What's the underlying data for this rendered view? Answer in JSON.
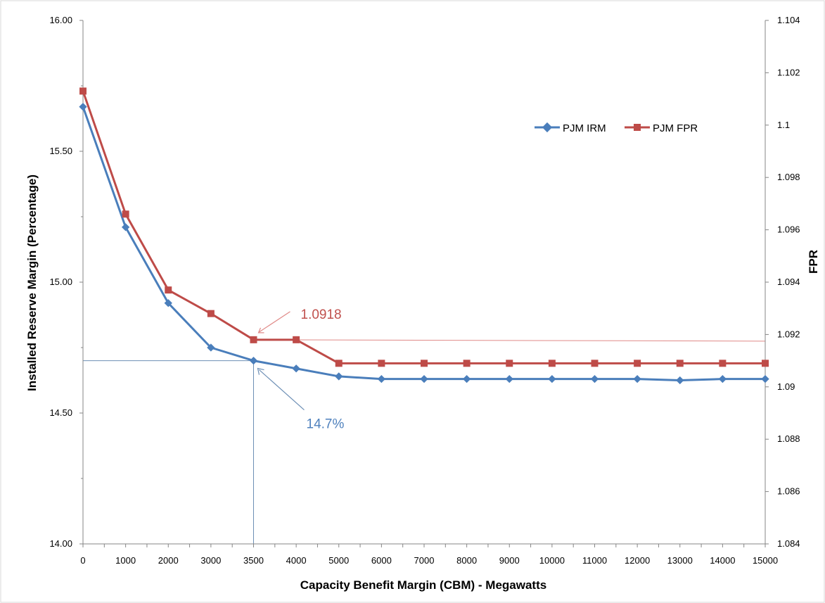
{
  "chart_data": {
    "type": "line",
    "title": "",
    "xlabel": "Capacity Benefit Margin (CBM) - Megawatts",
    "ylabel_left": "Installed Reserve Margin (Percentage)",
    "ylabel_right": "FPR",
    "categories": [
      "0",
      "1000",
      "2000",
      "3000",
      "3500",
      "4000",
      "5000",
      "6000",
      "7000",
      "8000",
      "9000",
      "10000",
      "11000",
      "12000",
      "13000",
      "14000",
      "15000"
    ],
    "y_left": {
      "min": 14.0,
      "max": 16.0,
      "ticks": [
        14.0,
        14.5,
        15.0,
        15.5,
        16.0
      ],
      "tick_labels": [
        "14.00",
        "14.50",
        "15.00",
        "15.50",
        "16.00"
      ]
    },
    "y_right": {
      "min": 1.084,
      "max": 1.104,
      "ticks": [
        1.084,
        1.086,
        1.088,
        1.09,
        1.092,
        1.094,
        1.096,
        1.098,
        1.1,
        1.102,
        1.104
      ],
      "tick_labels": [
        "1.084",
        "1.086",
        "1.088",
        "1.09",
        "1.092",
        "1.094",
        "1.096",
        "1.098",
        "1.1",
        "1.102",
        "1.104"
      ]
    },
    "series": [
      {
        "name": "PJM IRM",
        "axis": "left",
        "color": "#4a7ebb",
        "marker": "diamond",
        "values": [
          15.67,
          15.21,
          14.92,
          14.75,
          14.7,
          14.67,
          14.64,
          14.63,
          14.63,
          14.63,
          14.63,
          14.63,
          14.63,
          14.63,
          14.625,
          14.63,
          14.63
        ]
      },
      {
        "name": "PJM FPR",
        "axis": "right",
        "color": "#be4b48",
        "marker": "square",
        "values": [
          1.1013,
          1.0966,
          1.0937,
          1.0928,
          1.0918,
          1.0918,
          1.0909,
          1.0909,
          1.0909,
          1.0909,
          1.0909,
          1.0909,
          1.0909,
          1.0909,
          1.0909,
          1.0909,
          1.0909
        ]
      }
    ],
    "annotations": [
      {
        "text": "1.0918",
        "color": "#c0504d",
        "category": "3500",
        "series": "PJM FPR"
      },
      {
        "text": "14.7%",
        "color": "#4f81bd",
        "category": "3500",
        "series": "PJM IRM"
      }
    ],
    "reference_lines": {
      "irm_horizontal_value": 14.7,
      "irm_vertical_category": "3500",
      "fpr_horizontal_value": 1.0918
    },
    "legend": "top-right",
    "grid": false
  }
}
